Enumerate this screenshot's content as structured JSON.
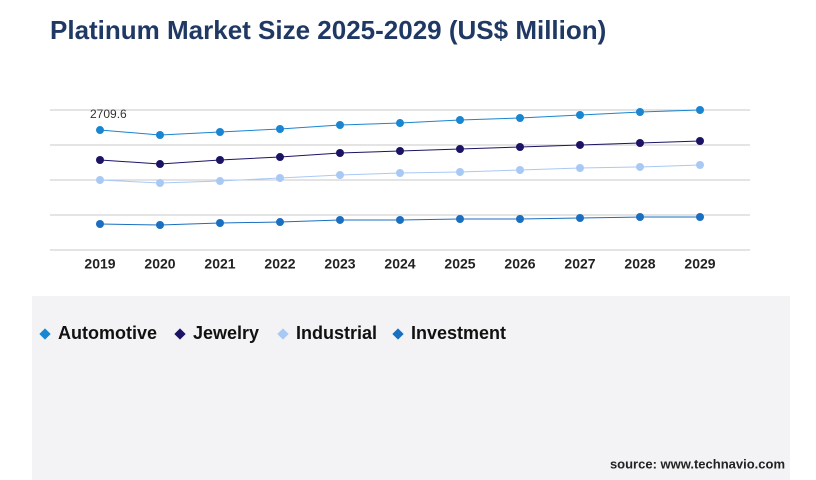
{
  "chart_data": {
    "type": "line",
    "title": "Platinum Market Size 2025-2029 (US$ Million)",
    "categories": [
      "2019",
      "2020",
      "2021",
      "2022",
      "2023",
      "2024",
      "2025",
      "2026",
      "2027",
      "2028",
      "2029"
    ],
    "series": [
      {
        "name": "Automotive",
        "color": "#1a85d0",
        "values": [
          2709.6,
          2597,
          2665,
          2733,
          2823,
          2868,
          2936,
          2981,
          3049,
          3117,
          3162
        ],
        "value_labels": [
          "2709.6",
          null,
          null,
          null,
          null,
          null,
          null,
          null,
          null,
          null,
          null
        ]
      },
      {
        "name": "Jewelry",
        "color": "#1b1464",
        "values": [
          2033,
          1942,
          2033,
          2100,
          2191,
          2236,
          2281,
          2326,
          2372,
          2417,
          2462
        ]
      },
      {
        "name": "Industrial",
        "color": "#a9c9f5",
        "values": [
          1581,
          1513,
          1558,
          1626,
          1694,
          1739,
          1762,
          1807,
          1852,
          1875,
          1920
        ]
      },
      {
        "name": "Investment",
        "color": "#1a6fc0",
        "values": [
          587,
          565,
          610,
          632,
          678,
          678,
          700,
          700,
          723,
          745,
          745
        ]
      }
    ],
    "ylim": [
      0,
      3162
    ],
    "yticks": [
      0,
      790.5,
      1581,
      2371.5,
      3162
    ],
    "grid": true,
    "source": "source: www.technavio.com"
  }
}
